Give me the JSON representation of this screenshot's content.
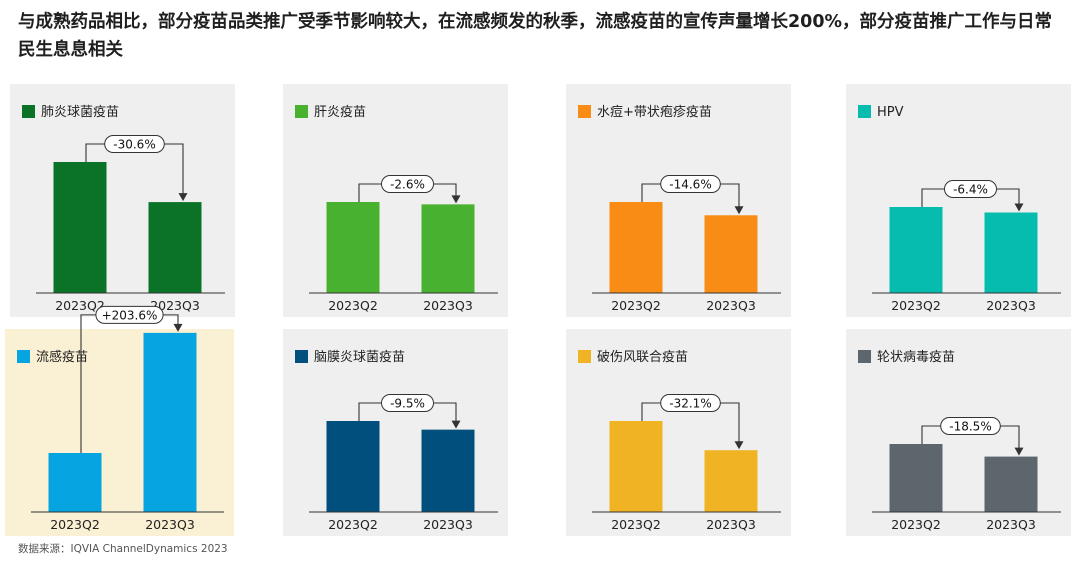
{
  "headline": "与成熟药品相比，部分疫苗品类推广受季节影响较大，在流感频发的秋季，流感疫苗的宣传声量增长200%，部分疫苗推广工作与日常民生息息相关",
  "source": "数据来源：IQVIA ChannelDynamics 2023",
  "chart_data": [
    {
      "type": "bar",
      "legend": "肺炎球菌疫苗",
      "color": "#0a7328",
      "bg": "#efefef",
      "categories": [
        "2023Q2",
        "2023Q3"
      ],
      "values": [
        100,
        69.4
      ],
      "change_label": "-30.6%"
    },
    {
      "type": "bar",
      "legend": "肝炎疫苗",
      "color": "#48b12f",
      "bg": "#efefef",
      "categories": [
        "2023Q2",
        "2023Q3"
      ],
      "values": [
        100,
        97.4
      ],
      "change_label": "-2.6%"
    },
    {
      "type": "bar",
      "legend": "水痘+带状疱疹疫苗",
      "color": "#f98c14",
      "bg": "#efefef",
      "categories": [
        "2023Q2",
        "2023Q3"
      ],
      "values": [
        100,
        85.4
      ],
      "change_label": "-14.6%"
    },
    {
      "type": "bar",
      "legend": "HPV",
      "color": "#05bcae",
      "bg": "#efefef",
      "categories": [
        "2023Q2",
        "2023Q3"
      ],
      "values": [
        100,
        93.6
      ],
      "change_label": "-6.4%"
    },
    {
      "type": "bar",
      "legend": "流感疫苗",
      "color": "#06a4e0",
      "bg": "#faf0d3",
      "categories": [
        "2023Q2",
        "2023Q3"
      ],
      "values": [
        100,
        303.6
      ],
      "change_label": "+203.6%"
    },
    {
      "type": "bar",
      "legend": "脑膜炎球菌疫苗",
      "color": "#004f7d",
      "bg": "#efefef",
      "categories": [
        "2023Q2",
        "2023Q3"
      ],
      "values": [
        100,
        90.5
      ],
      "change_label": "-9.5%"
    },
    {
      "type": "bar",
      "legend": "破伤风联合疫苗",
      "color": "#f0b323",
      "bg": "#efefef",
      "categories": [
        "2023Q2",
        "2023Q3"
      ],
      "values": [
        100,
        67.9
      ],
      "change_label": "-32.1%"
    },
    {
      "type": "bar",
      "legend": "轮状病毒疫苗",
      "color": "#5d666d",
      "bg": "#efefef",
      "categories": [
        "2023Q2",
        "2023Q3"
      ],
      "values": [
        100,
        81.5
      ],
      "change_label": "-18.5%"
    }
  ]
}
